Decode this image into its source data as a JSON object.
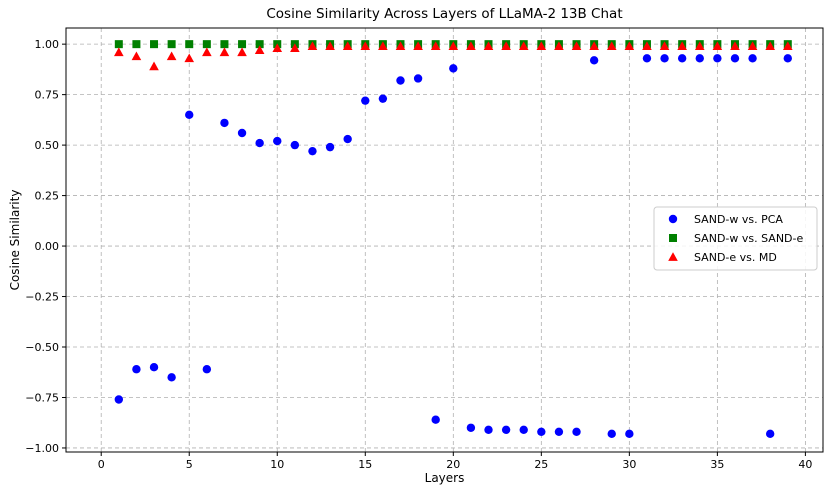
{
  "chart_data": {
    "type": "scatter",
    "title": "Cosine Similarity Across Layers of LLaMA-2 13B Chat",
    "xlabel": "Layers",
    "ylabel": "Cosine Similarity",
    "xlim": [
      -2,
      41
    ],
    "ylim": [
      -1.02,
      1.08
    ],
    "xticks": [
      0,
      5,
      10,
      15,
      20,
      25,
      30,
      35,
      40
    ],
    "yticks": [
      -1.0,
      -0.75,
      -0.5,
      -0.25,
      0.0,
      0.25,
      0.5,
      0.75,
      1.0
    ],
    "xtick_labels": [
      "0",
      "5",
      "10",
      "15",
      "20",
      "25",
      "30",
      "35",
      "40"
    ],
    "ytick_labels": [
      "−1.00",
      "−0.75",
      "−0.50",
      "−0.25",
      "0.00",
      "0.25",
      "0.50",
      "0.75",
      "1.00"
    ],
    "grid": true,
    "legend_position": "center-right",
    "series": [
      {
        "name": "SAND-w vs. PCA",
        "marker": "circle",
        "color": "#0000ff",
        "x": [
          1,
          2,
          3,
          4,
          5,
          6,
          7,
          8,
          9,
          10,
          11,
          12,
          13,
          14,
          15,
          16,
          17,
          18,
          19,
          20,
          21,
          22,
          23,
          24,
          25,
          26,
          27,
          28,
          29,
          30,
          31,
          32,
          33,
          34,
          35,
          36,
          37,
          38,
          39
        ],
        "y": [
          -0.76,
          -0.61,
          -0.6,
          -0.65,
          0.65,
          -0.61,
          0.61,
          0.56,
          0.51,
          0.52,
          0.5,
          0.47,
          0.49,
          0.53,
          0.72,
          0.73,
          0.82,
          0.83,
          -0.86,
          0.88,
          -0.9,
          -0.91,
          -0.91,
          -0.91,
          -0.92,
          -0.92,
          -0.92,
          0.92,
          -0.93,
          -0.93,
          0.93,
          0.93,
          0.93,
          0.93,
          0.93,
          0.93,
          0.93,
          -0.93,
          0.93
        ]
      },
      {
        "name": "SAND-w vs. SAND-e",
        "marker": "square",
        "color": "#008000",
        "x": [
          1,
          2,
          3,
          4,
          5,
          6,
          7,
          8,
          9,
          10,
          11,
          12,
          13,
          14,
          15,
          16,
          17,
          18,
          19,
          20,
          21,
          22,
          23,
          24,
          25,
          26,
          27,
          28,
          29,
          30,
          31,
          32,
          33,
          34,
          35,
          36,
          37,
          38,
          39
        ],
        "y": [
          1.0,
          1.0,
          1.0,
          1.0,
          1.0,
          1.0,
          1.0,
          1.0,
          1.0,
          1.0,
          1.0,
          1.0,
          1.0,
          1.0,
          1.0,
          1.0,
          1.0,
          1.0,
          1.0,
          1.0,
          1.0,
          1.0,
          1.0,
          1.0,
          1.0,
          1.0,
          1.0,
          1.0,
          1.0,
          1.0,
          1.0,
          1.0,
          1.0,
          1.0,
          1.0,
          1.0,
          1.0,
          1.0,
          1.0
        ]
      },
      {
        "name": "SAND-e vs. MD",
        "marker": "triangle",
        "color": "#ff0000",
        "x": [
          1,
          2,
          3,
          4,
          5,
          6,
          7,
          8,
          9,
          10,
          11,
          12,
          13,
          14,
          15,
          16,
          17,
          18,
          19,
          20,
          21,
          22,
          23,
          24,
          25,
          26,
          27,
          28,
          29,
          30,
          31,
          32,
          33,
          34,
          35,
          36,
          37,
          38,
          39
        ],
        "y": [
          0.96,
          0.94,
          0.89,
          0.94,
          0.93,
          0.96,
          0.96,
          0.96,
          0.97,
          0.98,
          0.98,
          0.99,
          0.99,
          0.99,
          0.99,
          0.99,
          0.99,
          0.99,
          0.99,
          0.99,
          0.99,
          0.99,
          0.99,
          0.99,
          0.99,
          0.99,
          0.99,
          0.99,
          0.99,
          0.99,
          0.99,
          0.99,
          0.99,
          0.99,
          0.99,
          0.99,
          0.99,
          0.99,
          0.99
        ]
      }
    ]
  }
}
